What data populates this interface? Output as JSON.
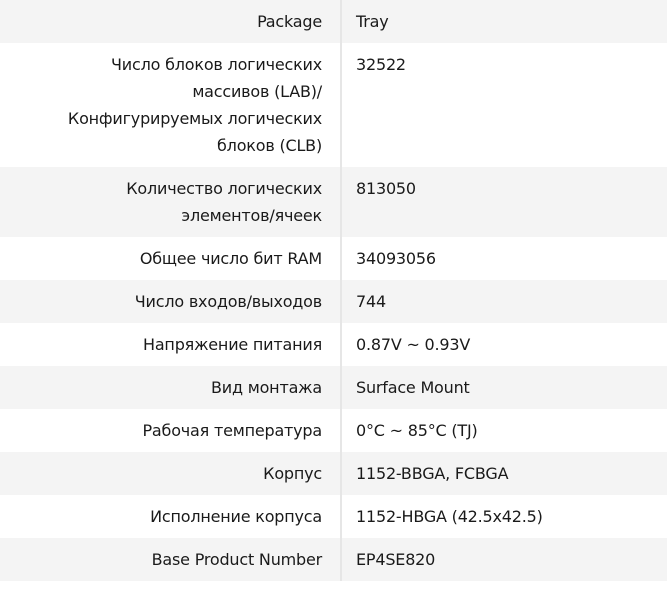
{
  "specs": [
    {
      "label": "Package",
      "value": "Tray"
    },
    {
      "label": "Число блоков логических массивов (LAB)/ Конфигурируемых логических блоков (CLB)",
      "value": "32522"
    },
    {
      "label": "Количество логических элементов/ячеек",
      "value": "813050"
    },
    {
      "label": "Общее число бит RAM",
      "value": "34093056"
    },
    {
      "label": "Число входов/выходов",
      "value": "744"
    },
    {
      "label": "Напряжение питания",
      "value": "0.87V ~ 0.93V"
    },
    {
      "label": "Вид монтажа",
      "value": "Surface Mount"
    },
    {
      "label": "Рабочая температура",
      "value": "0°C ~ 85°C (TJ)"
    },
    {
      "label": "Корпус",
      "value": "1152-BBGA, FCBGA"
    },
    {
      "label": "Исполнение корпуса",
      "value": "1152-HBGA (42.5x42.5)"
    },
    {
      "label": "Base Product Number",
      "value": "EP4SE820"
    }
  ]
}
